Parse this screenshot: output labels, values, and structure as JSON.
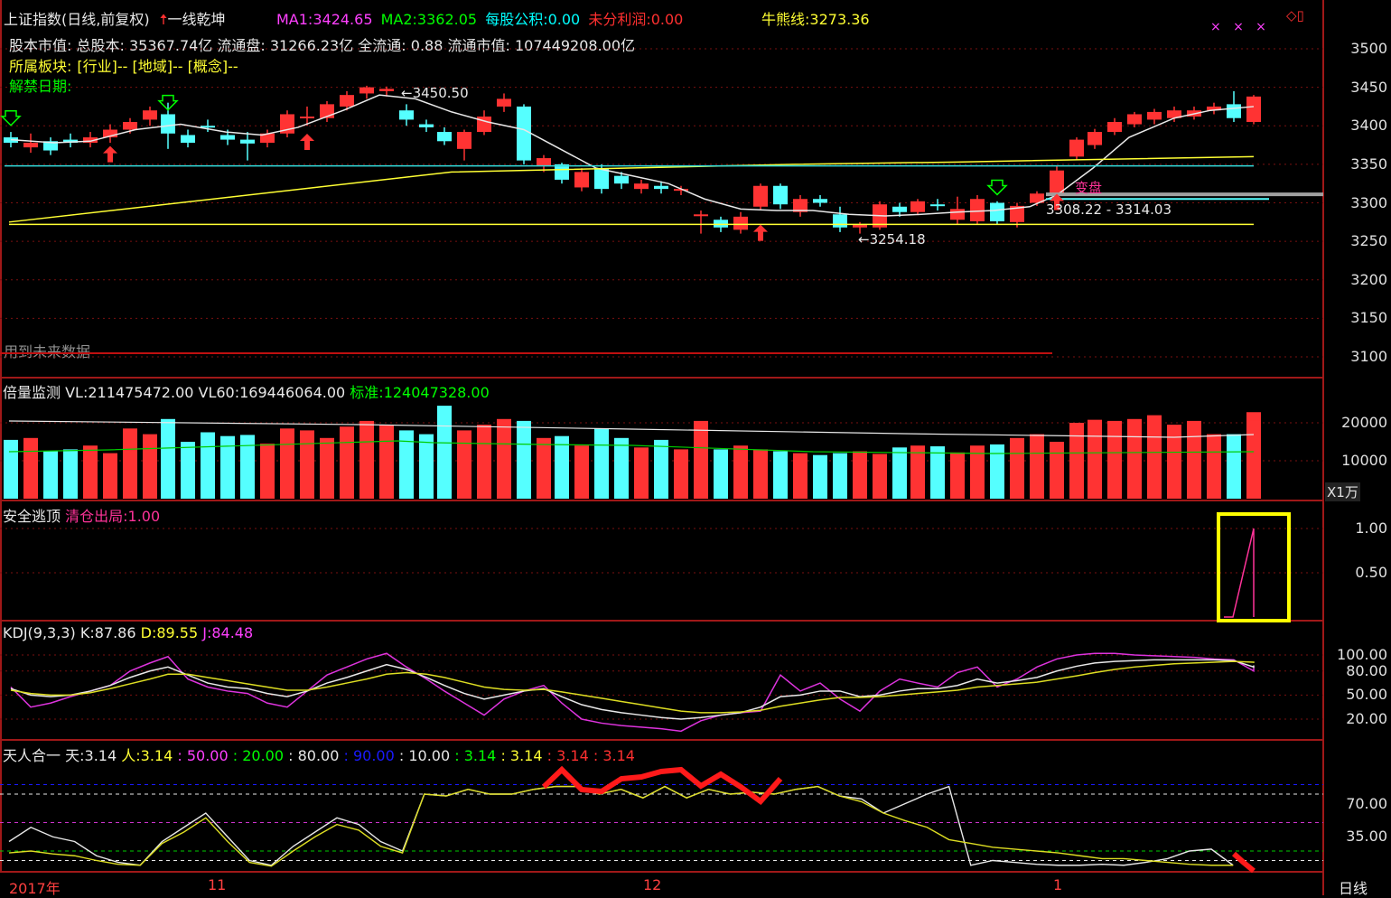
{
  "header": {
    "title": "上证指数(日线,前复权)",
    "indicator": "一线乾坤",
    "ma1_label": "MA1:",
    "ma1_value": "3424.65",
    "ma2_label": "MA2:",
    "ma2_value": "3362.05",
    "eps_label": "每股公积:",
    "eps_value": "0.00",
    "undist_label": "未分利润:",
    "undist_value": "0.00",
    "bull_bear_label": "牛熊线:",
    "bull_bear_value": "3273.36",
    "info_line1": "股本市值: 总股本: 35367.74亿 流通盘: 31266.23亿 全流通: 0.88 流通市值:   107449208.00亿",
    "sector_label": "所属板块:",
    "sector_value": "[行业]-- [地域]-- [概念]--",
    "unlock_label": "解禁日期:",
    "future_data": "用到未来数据"
  },
  "main_chart": {
    "annotations": {
      "high": "3450.50",
      "low": "3254.18",
      "range": "3308.22 - 3314.03",
      "change": "变盘"
    },
    "y_ticks": [
      "3500",
      "3450",
      "3400",
      "3350",
      "3300",
      "3250",
      "3200",
      "3150",
      "3100"
    ]
  },
  "volume": {
    "title": "倍量监测",
    "vl_label": "VL:",
    "vl_value": "211475472.00",
    "vl60_label": "VL60:",
    "vl60_value": "169446064.00",
    "std_label": "标准:",
    "std_value": "124047328.00",
    "y_ticks": [
      "20000",
      "10000"
    ],
    "unit": "X1万"
  },
  "escape": {
    "title": "安全逃顶",
    "signal_label": "清仓出局:",
    "signal_value": "1.00",
    "y_ticks": [
      "1.00",
      "0.50"
    ]
  },
  "kdj": {
    "title": "KDJ(9,3,3)",
    "k_label": "K:",
    "k_value": "87.86",
    "d_label": "D:",
    "d_value": "89.55",
    "j_label": "J:",
    "j_value": "84.48",
    "y_ticks": [
      "100.00",
      "80.00",
      "50.00",
      "20.00"
    ]
  },
  "trh": {
    "title": "天人合一",
    "tian_label": "天:",
    "tian_value": "3.14",
    "ren_label": "人:",
    "ren_value": "3.14",
    "v1": ": 50.00",
    "v2": ": 20.00",
    "v3": ": 80.00",
    "v4": ": 90.00",
    "v5": ": 10.00",
    "v6": ": 3.14",
    "v7": ": 3.14",
    "v8": ": 3.14",
    "v9": ": 3.14",
    "y_ticks": [
      "70.00",
      "35.00"
    ]
  },
  "x_axis": {
    "labels": [
      "2017年",
      "11",
      "12",
      "1"
    ],
    "period": "日线"
  },
  "colors": {
    "up": "#ff3333",
    "down": "#55ffff",
    "border": "#a01818",
    "highlight_box": "#ffff00"
  }
}
